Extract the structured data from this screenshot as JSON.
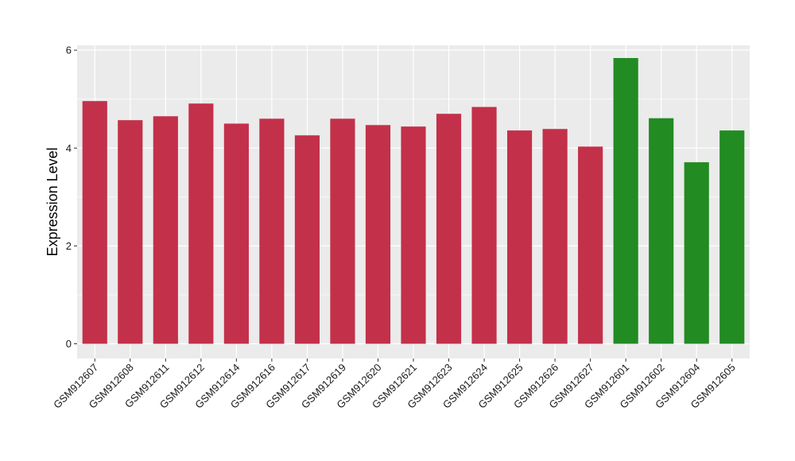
{
  "chart_data": {
    "type": "bar",
    "title": "",
    "xlabel": "",
    "ylabel": "Expression Level",
    "ylim": [
      -0.3,
      6.1
    ],
    "yticks": [
      0,
      2,
      4,
      6
    ],
    "grid": true,
    "legend": "none",
    "categories": [
      "GSM912607",
      "GSM912608",
      "GSM912611",
      "GSM912612",
      "GSM912614",
      "GSM912616",
      "GSM912617",
      "GSM912619",
      "GSM912620",
      "GSM912621",
      "GSM912623",
      "GSM912624",
      "GSM912625",
      "GSM912626",
      "GSM912627",
      "GSM912601",
      "GSM912602",
      "GSM912604",
      "GSM912605"
    ],
    "values": [
      4.96,
      4.57,
      4.65,
      4.91,
      4.5,
      4.6,
      4.26,
      4.6,
      4.47,
      4.44,
      4.7,
      4.84,
      4.36,
      4.39,
      4.03,
      5.84,
      4.61,
      3.71,
      4.36
    ],
    "groups": [
      "red",
      "red",
      "red",
      "red",
      "red",
      "red",
      "red",
      "red",
      "red",
      "red",
      "red",
      "red",
      "red",
      "red",
      "red",
      "green",
      "green",
      "green",
      "green"
    ],
    "colors": {
      "red": "#C3304A",
      "green": "#228B22",
      "panel": "#EBEBEB",
      "grid": "#FFFFFF"
    }
  }
}
